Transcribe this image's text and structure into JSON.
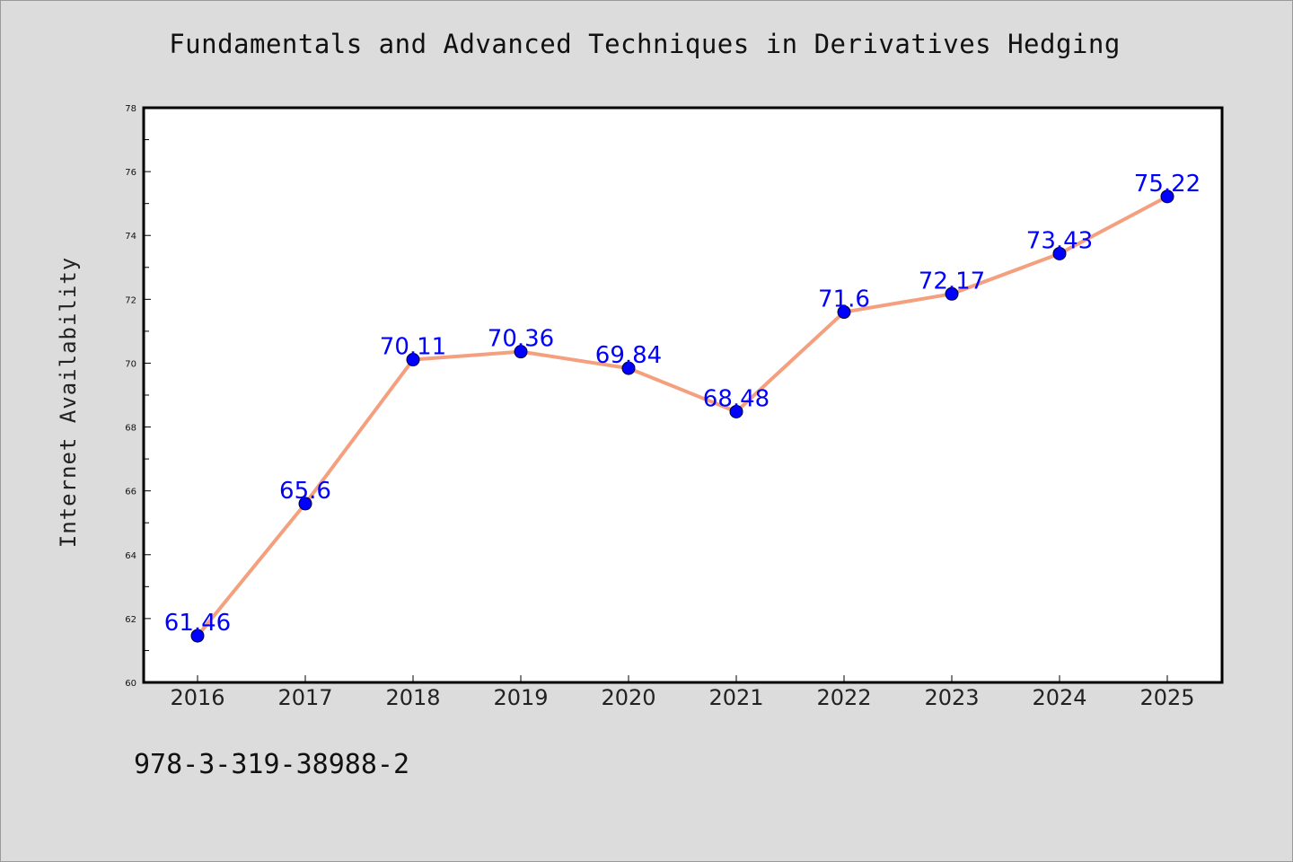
{
  "chart_data": {
    "type": "line",
    "title": "Fundamentals and Advanced Techniques in Derivatives Hedging",
    "xlabel": "",
    "ylabel": "Internet Availability",
    "categories": [
      "2016",
      "2017",
      "2018",
      "2019",
      "2020",
      "2021",
      "2022",
      "2023",
      "2024",
      "2025"
    ],
    "values": [
      61.46,
      65.6,
      70.11,
      70.36,
      69.84,
      68.48,
      71.6,
      72.17,
      73.43,
      75.22
    ],
    "data_labels": [
      "61.46",
      "65.6",
      "70.11",
      "70.36",
      "69.84",
      "68.48",
      "71.6",
      "72.17",
      "73.43",
      "75.22"
    ],
    "ylim": [
      60,
      78
    ],
    "yticks": [
      60,
      62,
      64,
      66,
      68,
      70,
      72,
      74,
      76,
      78
    ],
    "grid": false,
    "legend": "none",
    "colors": {
      "line": "#f4a07e",
      "marker": "#0000ff",
      "data_label": "#0000ff",
      "background": "#dcdcdc",
      "plot_background": "#ffffff"
    }
  },
  "footer": {
    "isbn": "978-3-319-38988-2"
  }
}
